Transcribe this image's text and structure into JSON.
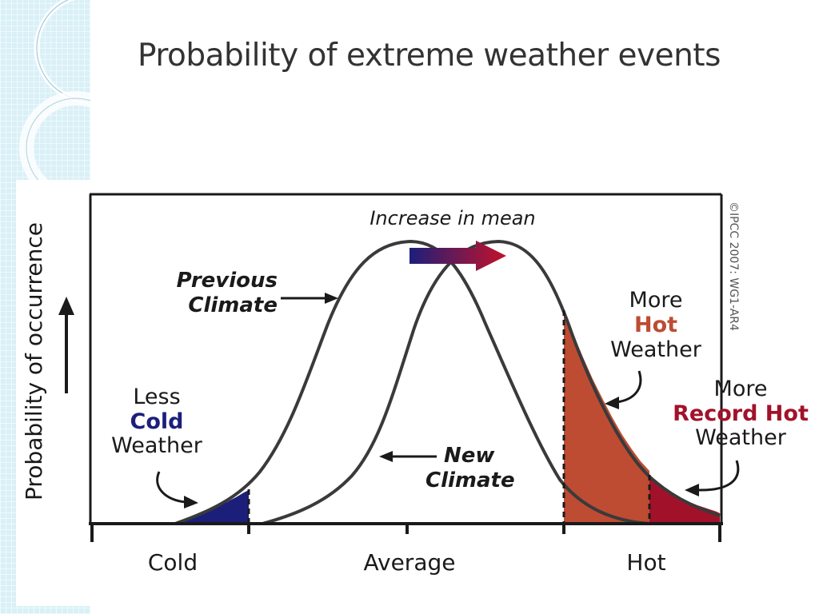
{
  "slide": {
    "title": "Probability of extreme weather events"
  },
  "figure": {
    "y_axis_label": "Probability of occurrence",
    "x_ticks": [
      "Cold",
      "Average",
      "Hot"
    ],
    "increase_label": "Increase in mean",
    "previous_climate": [
      "Previous",
      "Climate"
    ],
    "new_climate": [
      "New",
      "Climate"
    ],
    "less_cold": {
      "line1": "Less",
      "line2": "Cold",
      "line3": "Weather"
    },
    "more_hot": {
      "line1": "More",
      "line2": "Hot",
      "line3": "Weather"
    },
    "more_record_hot": {
      "line1": "More",
      "line2": "Record Hot",
      "line3": "Weather"
    },
    "credit": "©IPCC  2007: WG1-AR4"
  },
  "colors": {
    "title_text": "#333333",
    "curve": "#3a3a3a",
    "cold_accent": "#1c1f7a",
    "hot_accent": "#bd4c33",
    "record_hot_accent": "#a1122a",
    "arrow_start": "#1c1f7a",
    "arrow_end": "#c4122a",
    "panel_bg": "#d9f0f7"
  }
}
